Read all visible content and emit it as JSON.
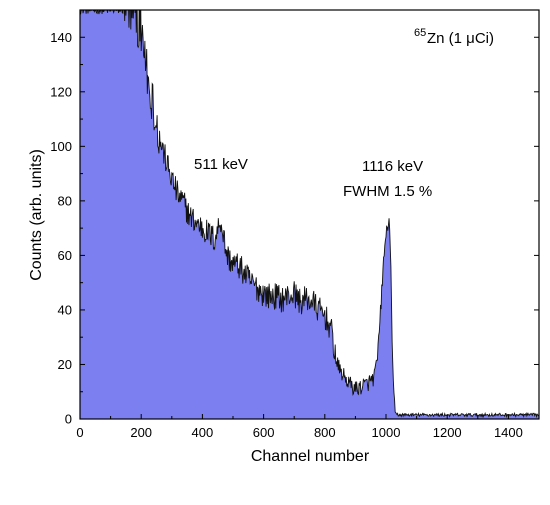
{
  "chart_data": {
    "type": "area",
    "title": "",
    "xlabel": "Channel number",
    "ylabel": "Counts (arb. units)",
    "xlim": [
      0,
      1500
    ],
    "ylim": [
      0,
      150
    ],
    "xticks": [
      0,
      200,
      400,
      600,
      800,
      1000,
      1200,
      1400
    ],
    "yticks": [
      0,
      20,
      40,
      60,
      80,
      100,
      120,
      140
    ],
    "grid": false,
    "fill_color": "#7B7FF0",
    "line_color": "#111111",
    "series": [
      {
        "x": [
          0,
          20,
          40,
          60,
          80,
          100,
          120,
          140,
          160,
          180,
          200,
          220,
          240,
          260,
          280,
          300,
          320,
          340,
          360,
          380,
          400,
          420,
          440,
          460,
          480,
          500,
          520,
          540,
          560,
          580,
          600,
          620,
          640,
          660,
          680,
          700,
          720,
          740,
          760,
          780,
          800,
          820,
          840,
          860,
          880,
          900,
          920,
          940,
          960,
          970,
          980,
          990,
          1000,
          1010,
          1015,
          1020,
          1025,
          1030,
          1040,
          1060,
          1100,
          1150,
          1200,
          1250,
          1300,
          1350,
          1400,
          1450,
          1500
        ],
        "values": [
          150,
          150,
          150,
          150,
          150,
          150,
          150,
          150,
          150,
          148,
          140,
          125,
          115,
          103,
          95,
          88,
          82,
          79,
          74,
          72,
          70,
          68,
          66,
          73,
          60,
          57,
          56,
          53,
          50,
          48,
          46,
          45,
          45,
          44,
          45,
          46,
          43,
          44,
          43,
          40,
          38,
          33,
          20,
          16,
          13,
          11,
          12,
          13,
          15,
          20,
          35,
          55,
          68,
          73,
          60,
          30,
          10,
          2,
          1.5,
          1.5,
          1.5,
          1.5,
          1.5,
          1.5,
          1.5,
          1.5,
          1.5,
          1.5,
          1.5
        ]
      }
    ],
    "annotations": [
      {
        "text": "511 keV"
      },
      {
        "text": "1116 keV"
      },
      {
        "text": "FWHM 1.5 %"
      },
      {
        "superscript": "65",
        "text": "Zn (1 μCi)"
      }
    ]
  }
}
